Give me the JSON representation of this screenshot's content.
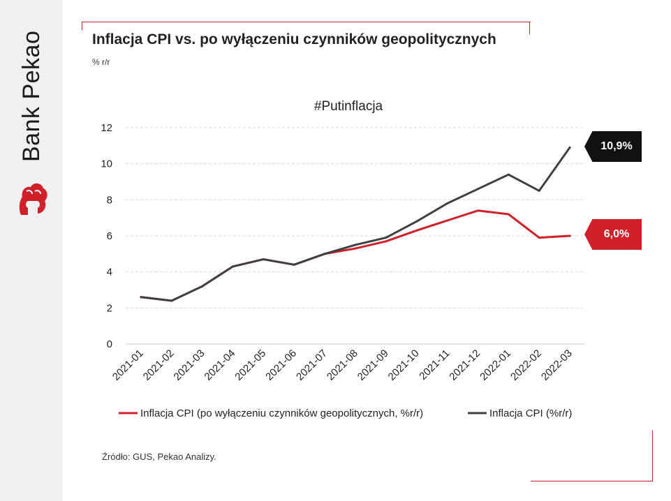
{
  "brand": {
    "name": "Bank Pekao",
    "accent": "#d0202a"
  },
  "header": {
    "title": "Inflacja CPI vs. po wyłączeniu czynników geopolitycznych",
    "unit": "% r/r"
  },
  "source": "Źródło: GUS, Pekao Analizy.",
  "badges": {
    "cpi": "10,9%",
    "core": "6,0%"
  },
  "chart_data": {
    "type": "line",
    "title": "#Putinflacja",
    "categories": [
      "2021-01",
      "2021-02",
      "2021-03",
      "2021-04",
      "2021-05",
      "2021-06",
      "2021-07",
      "2021-08",
      "2021-09",
      "2021-10",
      "2021-11",
      "2021-12",
      "2022-01",
      "2022-02",
      "2022-03"
    ],
    "series": [
      {
        "name": "Inflacja CPI (po wyłączeniu czynników geopolitycznych, %r/r)",
        "color": "#d0202a",
        "values": [
          2.6,
          2.4,
          3.2,
          4.3,
          4.7,
          4.4,
          5.0,
          5.3,
          5.7,
          6.3,
          6.85,
          7.4,
          7.2,
          5.9,
          6.0
        ]
      },
      {
        "name": "Inflacja CPI (%r/r)",
        "color": "#404040",
        "values": [
          2.6,
          2.4,
          3.2,
          4.3,
          4.7,
          4.4,
          5.0,
          5.5,
          5.9,
          6.8,
          7.8,
          8.6,
          9.4,
          8.5,
          10.9
        ]
      }
    ],
    "y_ticks": [
      0,
      2,
      4,
      6,
      8,
      10,
      12
    ],
    "ylim": [
      0,
      12
    ],
    "grid": true,
    "legend_position": "bottom"
  }
}
